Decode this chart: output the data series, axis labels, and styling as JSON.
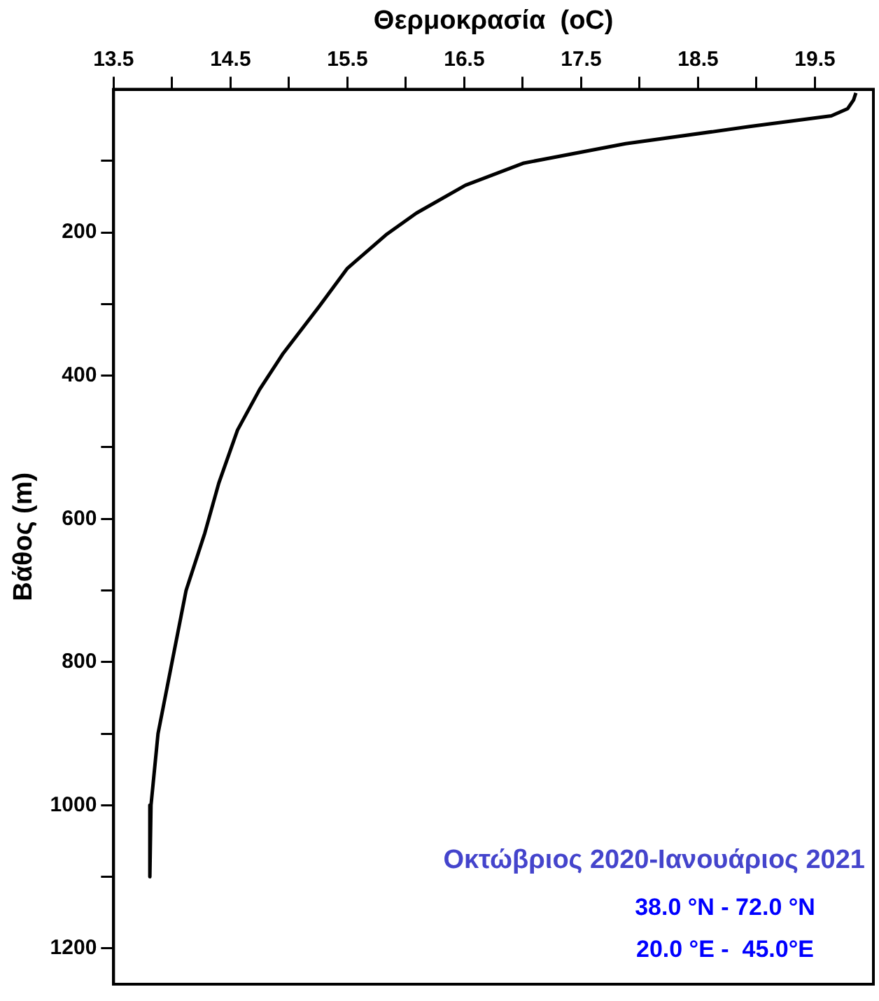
{
  "chart_data": {
    "type": "line",
    "xlabel": "Θερμοκρασία  (oC)",
    "ylabel": "Βάθος (m)",
    "x": [
      19.85,
      19.83,
      19.78,
      19.64,
      18.94,
      17.88,
      17.01,
      16.51,
      16.09,
      15.84,
      15.5,
      15.26,
      14.95,
      14.75,
      14.56,
      14.4,
      14.28,
      14.12,
      14.0,
      13.88,
      13.82,
      13.81
    ],
    "series": [
      {
        "color": "#000000",
        "values": [
          5,
          15,
          27,
          37,
          52,
          76,
          103,
          134,
          173,
          202,
          250,
          303,
          369,
          419,
          476,
          550,
          620,
          700,
          800,
          900,
          1000,
          1100
        ]
      }
    ],
    "xlim": [
      13.5,
      20
    ],
    "xticks": [
      13.5,
      {
        "value": 14,
        "label": null
      },
      14.5,
      {
        "value": 15,
        "label": null
      },
      15.5,
      {
        "value": 16,
        "label": null
      },
      16.5,
      {
        "value": 17,
        "label": null
      },
      17.5,
      {
        "value": 18,
        "label": null
      },
      18.5,
      {
        "value": 19,
        "label": null
      },
      19.5
    ],
    "ylim": [
      1250,
      0
    ],
    "yticks": [
      {
        "value": 100,
        "label": null
      },
      200,
      {
        "value": 300,
        "label": null
      },
      400,
      {
        "value": 500,
        "label": null
      },
      600,
      {
        "value": 700,
        "label": null
      },
      800,
      {
        "value": 900,
        "label": null
      },
      1000,
      {
        "value": 1100,
        "label": null
      },
      1200
    ],
    "annotations": [
      "Οκτώβριος 2020-Ιανουάριος 2021",
      "38.0 °N - 72.0 °N",
      "20.0 °E -  45.0°E"
    ],
    "grid": false,
    "legend": false
  }
}
